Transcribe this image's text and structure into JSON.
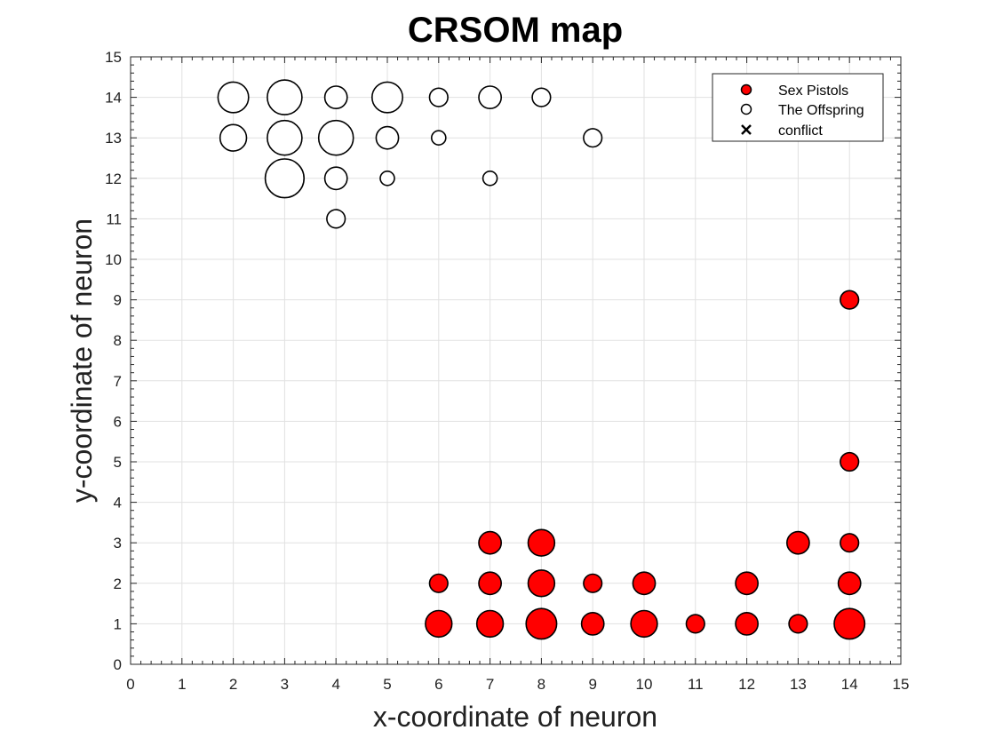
{
  "chart_data": {
    "type": "scatter",
    "title": "CRSOM map",
    "xlabel": "x-coordinate of neuron",
    "ylabel": "y-coordinate of neuron",
    "xlim": [
      0,
      15
    ],
    "ylim": [
      0,
      15
    ],
    "xticks": [
      0,
      1,
      2,
      3,
      4,
      5,
      6,
      7,
      8,
      9,
      10,
      11,
      12,
      13,
      14,
      15
    ],
    "yticks": [
      0,
      1,
      2,
      3,
      4,
      5,
      6,
      7,
      8,
      9,
      10,
      11,
      12,
      13,
      14,
      15
    ],
    "grid": true,
    "minor_ticks": true,
    "legend_position": "top-right",
    "series": [
      {
        "name": "Sex Pistols",
        "marker": "filled-circle",
        "color": "#ff0000",
        "points": [
          {
            "x": 6,
            "y": 1,
            "s": 3
          },
          {
            "x": 6,
            "y": 2,
            "s": 1
          },
          {
            "x": 7,
            "y": 1,
            "s": 3
          },
          {
            "x": 7,
            "y": 2,
            "s": 2
          },
          {
            "x": 7,
            "y": 3,
            "s": 2
          },
          {
            "x": 8,
            "y": 1,
            "s": 4
          },
          {
            "x": 8,
            "y": 2,
            "s": 3
          },
          {
            "x": 8,
            "y": 3,
            "s": 3
          },
          {
            "x": 9,
            "y": 1,
            "s": 2
          },
          {
            "x": 9,
            "y": 2,
            "s": 1
          },
          {
            "x": 10,
            "y": 1,
            "s": 3
          },
          {
            "x": 10,
            "y": 2,
            "s": 2
          },
          {
            "x": 11,
            "y": 1,
            "s": 1
          },
          {
            "x": 12,
            "y": 1,
            "s": 2
          },
          {
            "x": 12,
            "y": 2,
            "s": 2
          },
          {
            "x": 13,
            "y": 1,
            "s": 1
          },
          {
            "x": 13,
            "y": 3,
            "s": 2
          },
          {
            "x": 14,
            "y": 1,
            "s": 4
          },
          {
            "x": 14,
            "y": 2,
            "s": 2
          },
          {
            "x": 14,
            "y": 3,
            "s": 1
          },
          {
            "x": 14,
            "y": 5,
            "s": 1
          },
          {
            "x": 14,
            "y": 9,
            "s": 1
          }
        ]
      },
      {
        "name": "The Offspring",
        "marker": "open-circle",
        "color": "#ffffff",
        "points": [
          {
            "x": 2,
            "y": 14,
            "s": 4
          },
          {
            "x": 2,
            "y": 13,
            "s": 3
          },
          {
            "x": 3,
            "y": 14,
            "s": 5
          },
          {
            "x": 3,
            "y": 13,
            "s": 5
          },
          {
            "x": 3,
            "y": 12,
            "s": 6
          },
          {
            "x": 4,
            "y": 14,
            "s": 2
          },
          {
            "x": 4,
            "y": 13,
            "s": 5
          },
          {
            "x": 4,
            "y": 12,
            "s": 2
          },
          {
            "x": 4,
            "y": 11,
            "s": 1
          },
          {
            "x": 5,
            "y": 14,
            "s": 4
          },
          {
            "x": 5,
            "y": 13,
            "s": 2
          },
          {
            "x": 5,
            "y": 12,
            "s": 0
          },
          {
            "x": 6,
            "y": 14,
            "s": 1
          },
          {
            "x": 6,
            "y": 13,
            "s": 0
          },
          {
            "x": 7,
            "y": 14,
            "s": 2
          },
          {
            "x": 7,
            "y": 12,
            "s": 0
          },
          {
            "x": 8,
            "y": 14,
            "s": 1
          },
          {
            "x": 9,
            "y": 13,
            "s": 1
          }
        ]
      },
      {
        "name": "conflict",
        "marker": "x",
        "color": "#000000",
        "points": []
      }
    ]
  }
}
